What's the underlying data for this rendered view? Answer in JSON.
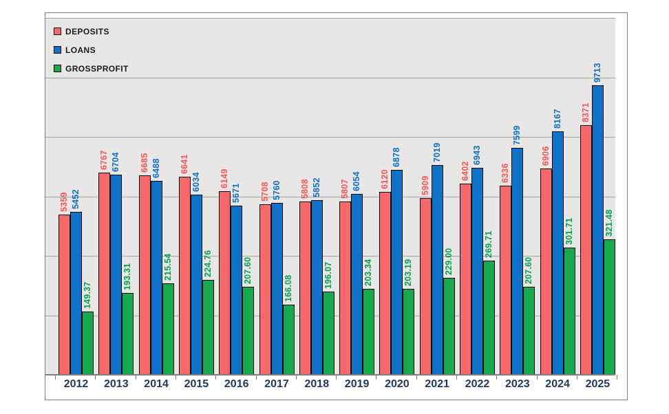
{
  "chart_data": {
    "type": "bar",
    "title": "",
    "xlabel": "",
    "ylabel": "",
    "categories": [
      "2012",
      "2013",
      "2014",
      "2015",
      "2016",
      "2017",
      "2018",
      "2019",
      "2020",
      "2021",
      "2022",
      "2023",
      "2024",
      "2025"
    ],
    "series": [
      {
        "name": "DEPOSITS",
        "color": "#f9696c",
        "label_color": "#ff5456",
        "values": [
          5359,
          6767,
          6685,
          6641,
          6149,
          5708,
          5808,
          5807,
          6120,
          5909,
          6402,
          6336,
          6906,
          8371
        ],
        "labels": [
          "5359",
          "6767",
          "6685",
          "6641",
          "6149",
          "5708",
          "5808",
          "5807",
          "6120",
          "5909",
          "6402",
          "6336",
          "6906",
          "8371"
        ]
      },
      {
        "name": "LOANS",
        "color": "#0e72c8",
        "label_color": "#0c70ce",
        "values": [
          5452,
          6704,
          6488,
          6034,
          5671,
          5760,
          5852,
          6054,
          6878,
          7019,
          6943,
          7599,
          8167,
          9713
        ],
        "labels": [
          "5452",
          "6704",
          "6488",
          "6034",
          "5671",
          "5760",
          "5852",
          "6054",
          "6878",
          "7019",
          "6943",
          "7599",
          "8167",
          "9713"
        ]
      },
      {
        "name": "GROSSPROFIT",
        "color": "#17a94d",
        "label_color": "#00a44f",
        "values": [
          149.37,
          193.31,
          215.54,
          224.76,
          207.6,
          166.08,
          196.07,
          203.34,
          203.19,
          229.0,
          269.71,
          207.6,
          301.71,
          321.48
        ],
        "labels": [
          "149.37",
          "193.31",
          "215.54",
          "224.76",
          "207.60",
          "166.08",
          "196.07",
          "203.34",
          "203.19",
          "229.00",
          "269.71",
          "207.60",
          "301.71",
          "321.48"
        ]
      }
    ],
    "legend": {
      "position": "top-left",
      "entries": [
        "DEPOSITS",
        "LOANS",
        "GROSSPROFIT"
      ]
    },
    "primary_axis": {
      "min": 0,
      "max": 12000,
      "gridline_step": 2000,
      "tick_labels_visible": false
    },
    "secondary_axis_grossprofit": {
      "min": 0,
      "max": 850,
      "tick_labels_visible": false
    },
    "grid": true,
    "background_color": "#e8e7e5",
    "x_tick_label_color": "#1f3864"
  }
}
